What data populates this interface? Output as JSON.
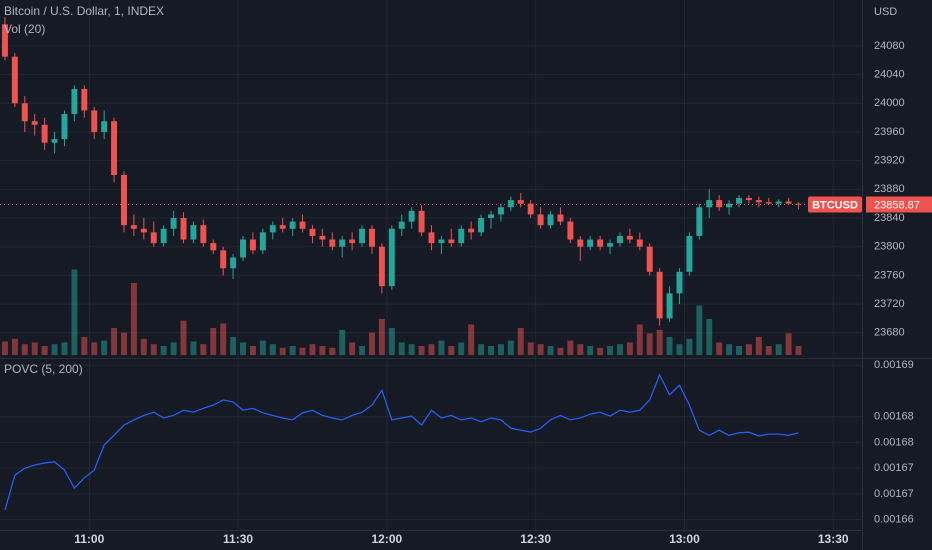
{
  "chart_data": [
    {
      "type": "candlestick",
      "title": "Bitcoin / U.S. Dollar, 1, INDEX",
      "symbol": "BTCUSD",
      "y_axis_label": "USD",
      "up_color": "#26a69a",
      "down_color": "#ef5350",
      "x": [
        643,
        645,
        647,
        649,
        651,
        653,
        655,
        657,
        659,
        661,
        663,
        665,
        667,
        669,
        671,
        673,
        675,
        677,
        679,
        681,
        683,
        685,
        687,
        689,
        691,
        693,
        695,
        697,
        699,
        701,
        703,
        705,
        707,
        709,
        711,
        713,
        715,
        717,
        719,
        721,
        723,
        725,
        727,
        729,
        731,
        733,
        735,
        737,
        739,
        741,
        743,
        745,
        747,
        749,
        751,
        753,
        755,
        757,
        759,
        761,
        763,
        765,
        767,
        769,
        771,
        773,
        775,
        777,
        779,
        781,
        783,
        785,
        787,
        789,
        791,
        793,
        795,
        797,
        799,
        801,
        803
      ],
      "open": [
        24110,
        24065,
        24000,
        23975,
        23970,
        23945,
        23950,
        23985,
        24020,
        23990,
        23960,
        23975,
        23900,
        23830,
        23825,
        23820,
        23805,
        23825,
        23840,
        23810,
        23830,
        23805,
        23795,
        23770,
        23785,
        23810,
        23795,
        23820,
        23830,
        23825,
        23835,
        23825,
        23815,
        23810,
        23800,
        23810,
        23805,
        23825,
        23800,
        23745,
        23825,
        23835,
        23850,
        23820,
        23805,
        23810,
        23805,
        23825,
        23820,
        23840,
        23845,
        23855,
        23865,
        23860,
        23845,
        23830,
        23845,
        23835,
        23810,
        23800,
        23810,
        23800,
        23805,
        23815,
        23810,
        23800,
        23765,
        23700,
        23735,
        23765,
        23815,
        23855,
        23865,
        23855,
        23860,
        23868,
        23865,
        23862,
        23860,
        23863,
        23860
      ],
      "high": [
        24120,
        24070,
        24010,
        23985,
        23980,
        23960,
        23990,
        24025,
        24025,
        23995,
        23990,
        23980,
        23905,
        23845,
        23840,
        23835,
        23830,
        23850,
        23848,
        23835,
        23838,
        23810,
        23800,
        23790,
        23815,
        23820,
        23825,
        23835,
        23840,
        23840,
        23845,
        23830,
        23825,
        23820,
        23815,
        23820,
        23830,
        23830,
        23805,
        23830,
        23845,
        23855,
        23858,
        23830,
        23815,
        23825,
        23830,
        23835,
        23845,
        23850,
        23860,
        23870,
        23875,
        23865,
        23855,
        23850,
        23855,
        23840,
        23815,
        23815,
        23815,
        23810,
        23820,
        23825,
        23820,
        23805,
        23770,
        23745,
        23770,
        23820,
        23860,
        23880,
        23872,
        23865,
        23872,
        23872,
        23870,
        23868,
        23866,
        23868,
        23862
      ],
      "low": [
        24060,
        23995,
        23960,
        23955,
        23935,
        23930,
        23940,
        23975,
        23980,
        23950,
        23950,
        23890,
        23820,
        23815,
        23810,
        23800,
        23800,
        23815,
        23805,
        23805,
        23800,
        23790,
        23760,
        23755,
        23780,
        23790,
        23790,
        23810,
        23820,
        23815,
        23820,
        23805,
        23800,
        23795,
        23785,
        23795,
        23800,
        23790,
        23735,
        23740,
        23815,
        23825,
        23815,
        23795,
        23790,
        23800,
        23800,
        23810,
        23815,
        23825,
        23835,
        23850,
        23855,
        23840,
        23825,
        23825,
        23830,
        23805,
        23780,
        23795,
        23795,
        23790,
        23800,
        23805,
        23795,
        23760,
        23690,
        23695,
        23720,
        23760,
        23810,
        23840,
        23850,
        23845,
        23855,
        23860,
        23855,
        23858,
        23855,
        23858,
        23852
      ],
      "close": [
        24065,
        24000,
        23975,
        23970,
        23945,
        23950,
        23985,
        24020,
        23990,
        23960,
        23975,
        23900,
        23830,
        23825,
        23820,
        23805,
        23825,
        23840,
        23810,
        23830,
        23805,
        23795,
        23770,
        23785,
        23810,
        23795,
        23820,
        23830,
        23825,
        23835,
        23825,
        23815,
        23810,
        23800,
        23810,
        23805,
        23825,
        23800,
        23745,
        23825,
        23835,
        23850,
        23820,
        23805,
        23810,
        23805,
        23825,
        23820,
        23840,
        23845,
        23855,
        23865,
        23860,
        23845,
        23830,
        23845,
        23835,
        23810,
        23800,
        23810,
        23800,
        23805,
        23815,
        23810,
        23800,
        23765,
        23700,
        23735,
        23765,
        23815,
        23855,
        23865,
        23855,
        23860,
        23868,
        23865,
        23862,
        23860,
        23863,
        23860,
        23858.87
      ],
      "ylim": [
        23649,
        24144
      ],
      "yticks": [
        23680,
        23720,
        23760,
        23800,
        23840,
        23880,
        23920,
        23960,
        24000,
        24040,
        24080
      ],
      "xlim": [
        642,
        815.8
      ],
      "xticks": [
        {
          "value": 660,
          "label": "11:00"
        },
        {
          "value": 690,
          "label": "11:30"
        },
        {
          "value": 720,
          "label": "12:00"
        },
        {
          "value": 750,
          "label": "12:30"
        },
        {
          "value": 780,
          "label": "13:00"
        },
        {
          "value": 810,
          "label": "13:30"
        }
      ],
      "volume": {
        "name": "Vol (20)",
        "ylim": [
          0,
          100
        ],
        "values": [
          15,
          18,
          12,
          14,
          10,
          12,
          14,
          95,
          20,
          14,
          16,
          30,
          25,
          80,
          18,
          12,
          10,
          14,
          38,
          15,
          12,
          30,
          35,
          20,
          14,
          10,
          16,
          12,
          8,
          10,
          8,
          12,
          10,
          8,
          28,
          14,
          10,
          25,
          40,
          30,
          14,
          12,
          10,
          12,
          16,
          10,
          14,
          34,
          12,
          10,
          12,
          16,
          30,
          14,
          12,
          10,
          8,
          16,
          12,
          10,
          8,
          10,
          12,
          14,
          34,
          24,
          28,
          20,
          12,
          18,
          55,
          40,
          14,
          12,
          10,
          12,
          20,
          10,
          12,
          24,
          10
        ]
      }
    },
    {
      "type": "line",
      "name": "POVC (5, 200)",
      "color": "#2962ff",
      "x": [
        643,
        645,
        647,
        649,
        651,
        653,
        655,
        657,
        659,
        661,
        663,
        665,
        667,
        669,
        671,
        673,
        675,
        677,
        679,
        681,
        683,
        685,
        687,
        689,
        691,
        693,
        695,
        697,
        699,
        701,
        703,
        705,
        707,
        709,
        711,
        713,
        715,
        717,
        719,
        721,
        723,
        725,
        727,
        729,
        731,
        733,
        735,
        737,
        739,
        741,
        743,
        745,
        747,
        749,
        751,
        753,
        755,
        757,
        759,
        761,
        763,
        765,
        767,
        769,
        771,
        773,
        775,
        777,
        779,
        781,
        783,
        785,
        787,
        789,
        791,
        793,
        795,
        797,
        799,
        801,
        803
      ],
      "values": [
        0.0016655,
        0.0016709,
        0.001672,
        0.0016725,
        0.0016728,
        0.001673,
        0.0016717,
        0.0016689,
        0.0016705,
        0.0016717,
        0.0016756,
        0.0016771,
        0.0016787,
        0.0016795,
        0.0016802,
        0.0016807,
        0.0016798,
        0.0016802,
        0.001681,
        0.0016807,
        0.0016813,
        0.0016818,
        0.0016826,
        0.0016823,
        0.001681,
        0.0016813,
        0.0016806,
        0.0016802,
        0.0016798,
        0.0016795,
        0.0016806,
        0.001681,
        0.0016802,
        0.0016798,
        0.0016795,
        0.0016802,
        0.0016807,
        0.0016818,
        0.0016841,
        0.0016795,
        0.0016798,
        0.0016801,
        0.0016787,
        0.001681,
        0.0016798,
        0.0016802,
        0.0016795,
        0.0016798,
        0.0016792,
        0.0016798,
        0.0016795,
        0.0016782,
        0.0016779,
        0.0016776,
        0.0016782,
        0.0016795,
        0.0016802,
        0.0016795,
        0.0016798,
        0.0016804,
        0.0016807,
        0.0016801,
        0.001681,
        0.0016807,
        0.001681,
        0.0016826,
        0.0016865,
        0.0016834,
        0.0016849,
        0.0016818,
        0.0016779,
        0.0016771,
        0.0016779,
        0.0016771,
        0.0016775,
        0.0016776,
        0.001677,
        0.0016773,
        0.0016773,
        0.0016771,
        0.0016775
      ],
      "ylim": [
        0.0016627,
        0.0016885
      ],
      "yticks": [
        {
          "value": 0.001688,
          "label": "0.00169"
        },
        {
          "value": 0.00168,
          "label": "0.00168"
        },
        {
          "value": 0.001676,
          "label": "0.00168"
        },
        {
          "value": 0.001672,
          "label": "0.00167"
        },
        {
          "value": 0.001668,
          "label": "0.00167"
        },
        {
          "value": 0.001664,
          "label": "0.00166"
        }
      ],
      "xlim": [
        642,
        815.8
      ]
    }
  ]
}
